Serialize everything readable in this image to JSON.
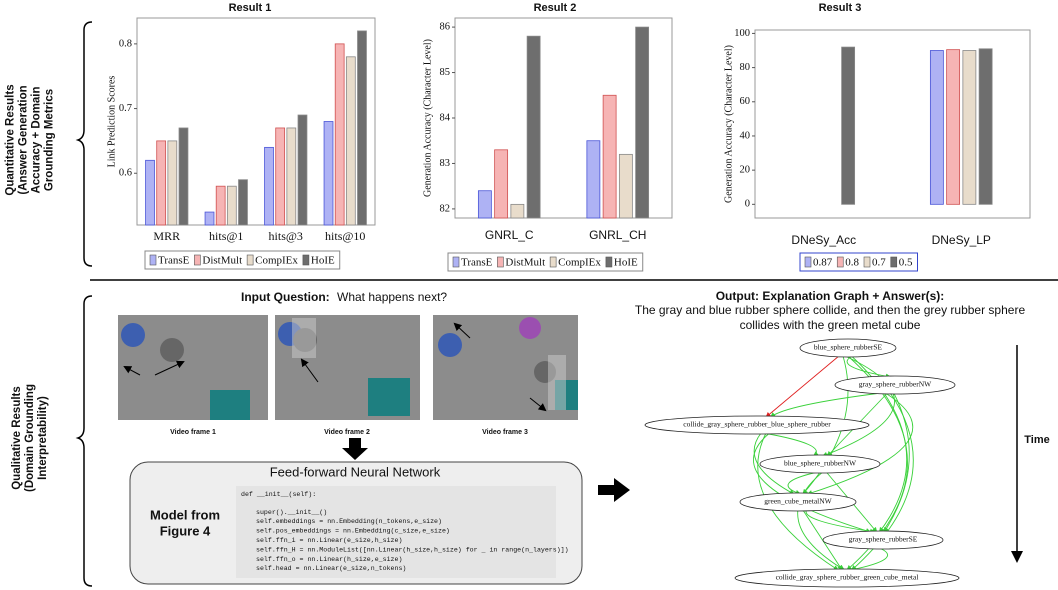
{
  "chart_data": [
    {
      "type": "bar",
      "title": "Result 1",
      "y_label": "Link Prediction Scores",
      "categories": [
        "MRR",
        "hits@1",
        "hits@3",
        "hits@10"
      ],
      "series": [
        {
          "name": "TransE",
          "color": "#aeb2f4",
          "values": [
            0.62,
            0.54,
            0.64,
            0.68
          ]
        },
        {
          "name": "DistMult",
          "color": "#f6b4b4",
          "values": [
            0.65,
            0.58,
            0.67,
            0.8
          ]
        },
        {
          "name": "CompIEx",
          "color": "#e8dccb",
          "values": [
            0.65,
            0.58,
            0.67,
            0.78
          ]
        },
        {
          "name": "HoIE",
          "color": "#6e6e6e",
          "values": [
            0.67,
            0.59,
            0.69,
            0.82
          ]
        }
      ],
      "ylim": [
        0.52,
        0.84
      ],
      "yticks": [
        0.6,
        0.7,
        0.8
      ]
    },
    {
      "type": "bar",
      "title": "Result 2",
      "y_label": "Generation Accuracy (Character Level)",
      "categories": [
        "GNRL_C",
        "GNRL_CH"
      ],
      "series": [
        {
          "name": "TransE",
          "color": "#aeb2f4",
          "values": [
            82.4,
            83.5
          ]
        },
        {
          "name": "DistMult",
          "color": "#f6b4b4",
          "values": [
            83.3,
            84.5
          ]
        },
        {
          "name": "CompIEx",
          "color": "#e8dccb",
          "values": [
            82.1,
            83.2
          ]
        },
        {
          "name": "HoIE",
          "color": "#6e6e6e",
          "values": [
            85.8,
            86.0
          ]
        }
      ],
      "ylim": [
        81.8,
        86.2
      ],
      "yticks": [
        82,
        83,
        84,
        85,
        86
      ]
    },
    {
      "type": "bar",
      "title": "Result 3",
      "y_label": "Generation Accuracy (Character Level)",
      "categories": [
        "DNeSy_Acc",
        "DNeSy_LP"
      ],
      "series": [
        {
          "name": "0.87",
          "color": "#aeb2f4",
          "values": [
            0,
            90
          ]
        },
        {
          "name": "0.8",
          "color": "#f6b4b4",
          "values": [
            0,
            90.5
          ]
        },
        {
          "name": "0.7",
          "color": "#e8dccb",
          "values": [
            0,
            90
          ]
        },
        {
          "name": "0.5",
          "color": "#6e6e6e",
          "values": [
            92,
            91
          ]
        }
      ],
      "ylim": [
        -8,
        102
      ],
      "yticks": [
        0,
        20,
        40,
        60,
        80,
        100
      ]
    }
  ],
  "sections": {
    "quantitative": [
      "Quantitative Results",
      "(Answer Generation",
      "Accuracy + Domain",
      "Grounding Metrics"
    ],
    "qualitative": [
      "Qualitative Results",
      "(Domain Grounding",
      "Interpretability)"
    ]
  },
  "input": {
    "label": "Input Question:",
    "question": "What happens next?",
    "frames": [
      "Video frame 1",
      "Video frame 2",
      "Video frame 3"
    ]
  },
  "model": {
    "title": "Feed-forward Neural Network",
    "side_label": [
      "Model from",
      "Figure 4"
    ],
    "code": [
      "def __init__(self):",
      "super().__init__()",
      "self.embeddings = nn.Embedding(n_tokens,e_size)",
      "self.pos_embeddings = nn.Embedding(c_size,e_size)",
      "self.ffn_i = nn.Linear(e_size,h_size)",
      "self.ffn_H = nn.ModuleList([nn.Linear(h_size,h_size) for _ in range(n_layers)])",
      "self.ffn_o = nn.Linear(h_size,e_size)",
      "self.head = nn.Linear(e_size,n_tokens)"
    ]
  },
  "output": {
    "heading": "Output: Explanation Graph + Answer(s):",
    "answer": [
      "The gray and blue rubber sphere collide, and then the grey rubber sphere",
      "collides with the green metal cube"
    ],
    "nodes": [
      "blue_sphere_rubberSE",
      "gray_sphere_rubberNW",
      "collide_gray_sphere_rubber_blue_sphere_rubber",
      "blue_sphere_rubberNW",
      "green_cube_metalNW",
      "gray_sphere_rubberSE",
      "collide_gray_sphere_rubber_green_cube_metal"
    ],
    "time_label": "Time"
  }
}
